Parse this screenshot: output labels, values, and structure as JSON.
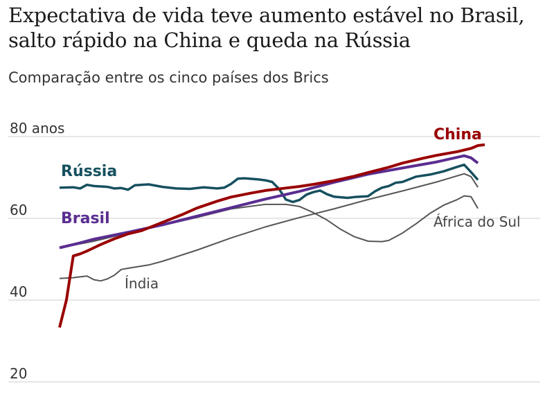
{
  "title": "Expectativa de vida teve aumento estável no Brasil, salto rápido na China e queda na Rússia",
  "subtitle": "Comparação entre os cinco países dos Brics",
  "chart_data": {
    "type": "line",
    "ylim": [
      20,
      80
    ],
    "xlim": [
      1960,
      2022
    ],
    "yticks": [
      {
        "value": 80,
        "label": "80 anos"
      },
      {
        "value": 60,
        "label": "60"
      },
      {
        "value": 40,
        "label": "40"
      },
      {
        "value": 20,
        "label": "20"
      }
    ],
    "grid": true,
    "legend": "direct labels",
    "series": [
      {
        "name": "China",
        "color": "#990000",
        "width": 4,
        "label": {
          "text": "China",
          "style": "bold"
        },
        "points": [
          [
            1960,
            33.3
          ],
          [
            1961,
            40
          ],
          [
            1962,
            50.8
          ],
          [
            1963,
            51.3
          ],
          [
            1964,
            52
          ],
          [
            1965,
            52.8
          ],
          [
            1966,
            53.6
          ],
          [
            1967,
            54.3
          ],
          [
            1968,
            55
          ],
          [
            1969,
            55.6
          ],
          [
            1970,
            56.2
          ],
          [
            1972,
            57
          ],
          [
            1975,
            59
          ],
          [
            1978,
            61
          ],
          [
            1980,
            62.5
          ],
          [
            1983,
            64.2
          ],
          [
            1985,
            65.2
          ],
          [
            1988,
            66.2
          ],
          [
            1990,
            66.8
          ],
          [
            1993,
            67.4
          ],
          [
            1995,
            67.8
          ],
          [
            1997,
            68.3
          ],
          [
            2000,
            69.2
          ],
          [
            2003,
            70.3
          ],
          [
            2005,
            71.2
          ],
          [
            2008,
            72.5
          ],
          [
            2010,
            73.5
          ],
          [
            2013,
            74.7
          ],
          [
            2015,
            75.4
          ],
          [
            2018,
            76.3
          ],
          [
            2020,
            77.1
          ],
          [
            2021,
            77.8
          ],
          [
            2022,
            78.0
          ]
        ]
      },
      {
        "name": "Brasil",
        "color": "#5a2d91",
        "width": 4,
        "label": {
          "text": "Brasil",
          "style": "bold"
        },
        "points": [
          [
            1960,
            52.8
          ],
          [
            1963,
            54
          ],
          [
            1965,
            54.9
          ],
          [
            1970,
            56.6
          ],
          [
            1975,
            58.4
          ],
          [
            1980,
            60.5
          ],
          [
            1985,
            62.6
          ],
          [
            1990,
            64.7
          ],
          [
            1995,
            66.6
          ],
          [
            2000,
            68.8
          ],
          [
            2005,
            70.8
          ],
          [
            2010,
            72.3
          ],
          [
            2015,
            73.8
          ],
          [
            2019,
            75.3
          ],
          [
            2020,
            74.8
          ],
          [
            2021,
            73.5
          ]
        ]
      },
      {
        "name": "Rússia",
        "color": "#16505f",
        "width": 3.5,
        "label": {
          "text": "Rússia",
          "style": "bold"
        },
        "points": [
          [
            1960,
            67.5
          ],
          [
            1962,
            67.6
          ],
          [
            1963,
            67.3
          ],
          [
            1964,
            68.2
          ],
          [
            1965,
            67.9
          ],
          [
            1967,
            67.7
          ],
          [
            1968,
            67.3
          ],
          [
            1969,
            67.4
          ],
          [
            1970,
            67
          ],
          [
            1971,
            68.1
          ],
          [
            1973,
            68.3
          ],
          [
            1975,
            67.7
          ],
          [
            1977,
            67.3
          ],
          [
            1979,
            67.2
          ],
          [
            1981,
            67.6
          ],
          [
            1983,
            67.3
          ],
          [
            1984,
            67.5
          ],
          [
            1985,
            68.4
          ],
          [
            1986,
            69.7
          ],
          [
            1987,
            69.8
          ],
          [
            1989,
            69.5
          ],
          [
            1990,
            69.3
          ],
          [
            1991,
            68.9
          ],
          [
            1992,
            67.2
          ],
          [
            1993,
            64.6
          ],
          [
            1994,
            64
          ],
          [
            1995,
            64.5
          ],
          [
            1996,
            65.8
          ],
          [
            1997,
            66.4
          ],
          [
            1998,
            66.8
          ],
          [
            1999,
            65.9
          ],
          [
            2000,
            65.3
          ],
          [
            2002,
            65.0
          ],
          [
            2003,
            65.2
          ],
          [
            2005,
            65.4
          ],
          [
            2006,
            66.6
          ],
          [
            2007,
            67.5
          ],
          [
            2008,
            67.9
          ],
          [
            2009,
            68.7
          ],
          [
            2010,
            68.9
          ],
          [
            2012,
            70.2
          ],
          [
            2014,
            70.7
          ],
          [
            2016,
            71.5
          ],
          [
            2018,
            72.6
          ],
          [
            2019,
            73.1
          ],
          [
            2020,
            71.3
          ],
          [
            2021,
            69.4
          ]
        ]
      },
      {
        "name": "África do Sul",
        "color": "#555555",
        "width": 2,
        "label": {
          "text": "África do Sul",
          "style": "regular"
        },
        "points": [
          [
            1960,
            52.8
          ],
          [
            1965,
            54.4
          ],
          [
            1970,
            56.4
          ],
          [
            1975,
            58.3
          ],
          [
            1980,
            60.2
          ],
          [
            1985,
            62.3
          ],
          [
            1990,
            63.4
          ],
          [
            1993,
            63.4
          ],
          [
            1995,
            62.9
          ],
          [
            1997,
            61.4
          ],
          [
            1999,
            59.6
          ],
          [
            2001,
            57.3
          ],
          [
            2003,
            55.5
          ],
          [
            2005,
            54.4
          ],
          [
            2007,
            54.3
          ],
          [
            2008,
            54.6
          ],
          [
            2010,
            56.4
          ],
          [
            2012,
            58.7
          ],
          [
            2014,
            61.2
          ],
          [
            2016,
            63.2
          ],
          [
            2018,
            64.6
          ],
          [
            2019,
            65.5
          ],
          [
            2020,
            65.3
          ],
          [
            2021,
            62.4
          ]
        ]
      },
      {
        "name": "Índia",
        "color": "#555555",
        "width": 2,
        "label": {
          "text": "Índia",
          "style": "regular"
        },
        "points": [
          [
            1960,
            45.3
          ],
          [
            1962,
            45.5
          ],
          [
            1964,
            45.9
          ],
          [
            1965,
            45.0
          ],
          [
            1966,
            44.7
          ],
          [
            1967,
            45.2
          ],
          [
            1968,
            46.1
          ],
          [
            1969,
            47.5
          ],
          [
            1970,
            47.8
          ],
          [
            1973,
            48.6
          ],
          [
            1975,
            49.5
          ],
          [
            1980,
            52.2
          ],
          [
            1985,
            55.2
          ],
          [
            1990,
            57.9
          ],
          [
            1995,
            60.2
          ],
          [
            2000,
            62.3
          ],
          [
            2005,
            64.6
          ],
          [
            2010,
            66.7
          ],
          [
            2015,
            68.9
          ],
          [
            2019,
            70.9
          ],
          [
            2020,
            70.2
          ],
          [
            2021,
            67.6
          ]
        ]
      }
    ]
  }
}
